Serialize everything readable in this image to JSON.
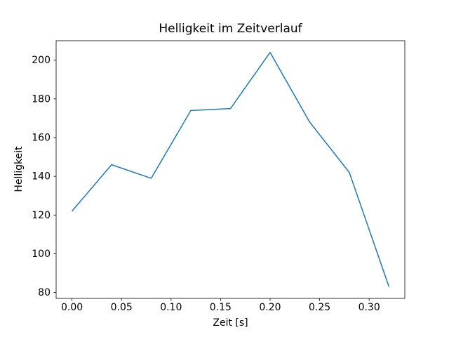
{
  "chart_data": {
    "type": "line",
    "title": "Helligkeit im Zeitverlauf",
    "xlabel": "Zeit [s]",
    "ylabel": "Helligkeit",
    "x": [
      0.0,
      0.04,
      0.08,
      0.12,
      0.16,
      0.2,
      0.24,
      0.28,
      0.32
    ],
    "values": [
      122,
      146,
      139,
      174,
      175,
      204,
      168,
      142,
      83
    ],
    "xlim": [
      -0.016,
      0.336
    ],
    "ylim": [
      76.95,
      210.05
    ],
    "xticks": [
      {
        "value": 0.0,
        "label": "0.00"
      },
      {
        "value": 0.05,
        "label": "0.05"
      },
      {
        "value": 0.1,
        "label": "0.10"
      },
      {
        "value": 0.15,
        "label": "0.15"
      },
      {
        "value": 0.2,
        "label": "0.20"
      },
      {
        "value": 0.25,
        "label": "0.25"
      },
      {
        "value": 0.3,
        "label": "0.30"
      }
    ],
    "yticks": [
      {
        "value": 80,
        "label": "80"
      },
      {
        "value": 100,
        "label": "100"
      },
      {
        "value": 120,
        "label": "120"
      },
      {
        "value": 140,
        "label": "140"
      },
      {
        "value": 160,
        "label": "160"
      },
      {
        "value": 180,
        "label": "180"
      },
      {
        "value": 200,
        "label": "200"
      }
    ],
    "line_color": "#1f77b4",
    "axis_color": "#000000",
    "background_color": "#ffffff",
    "grid": false,
    "legend": "none"
  }
}
